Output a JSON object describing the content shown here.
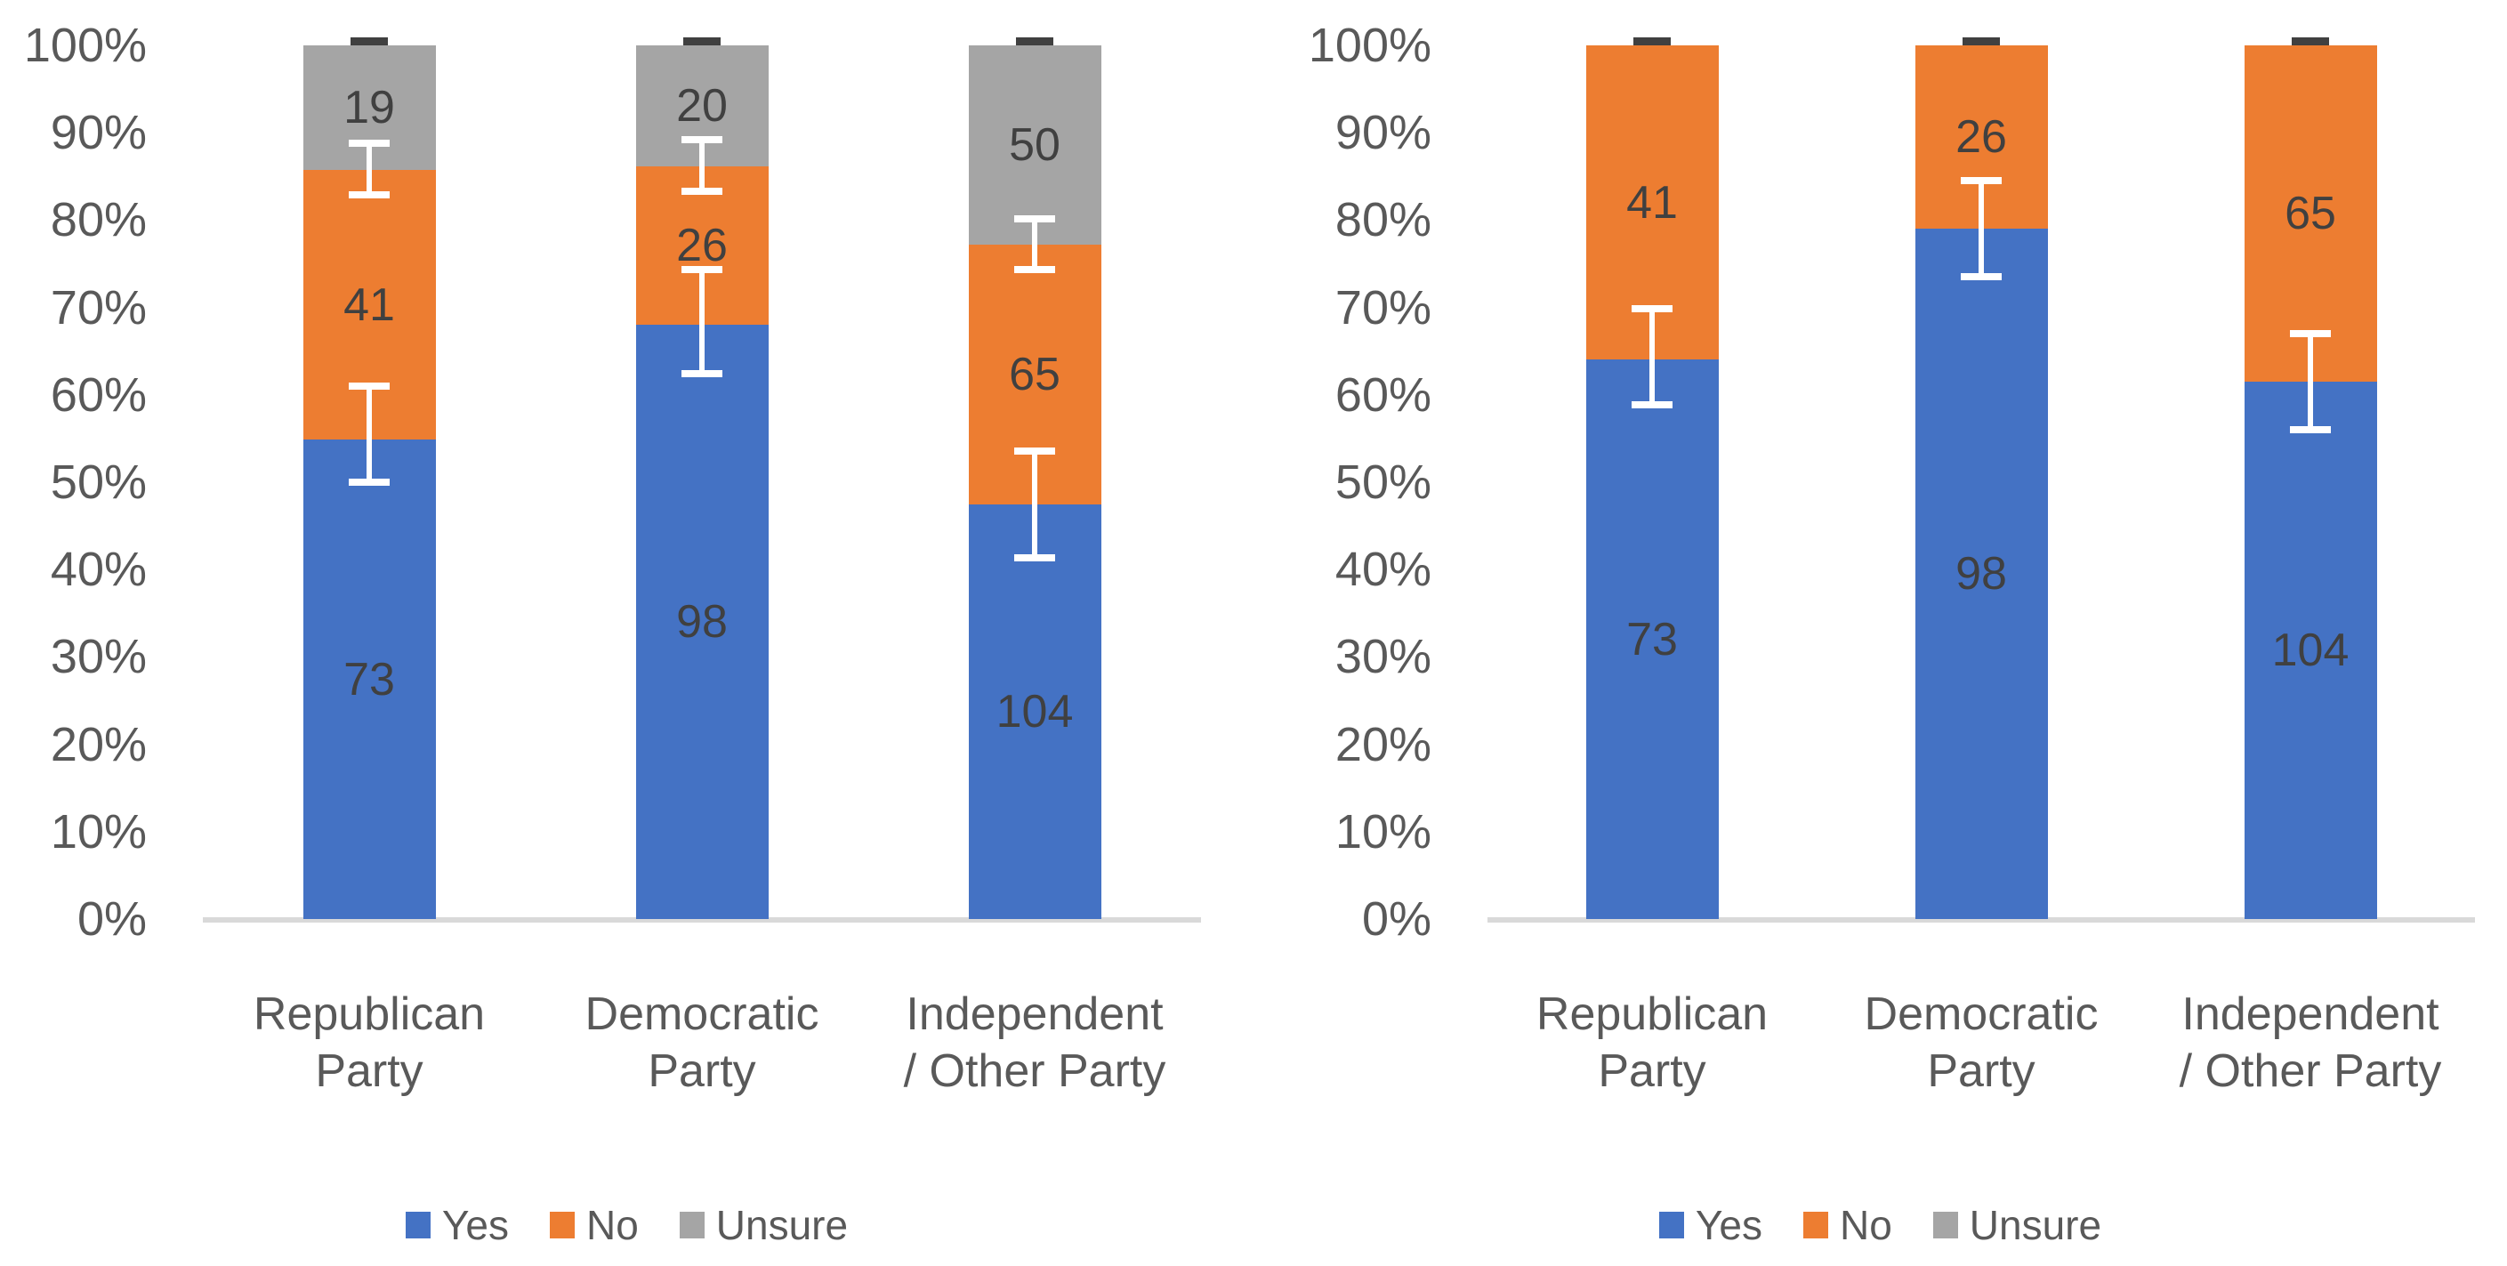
{
  "page": {
    "background": "#ffffff"
  },
  "colors": {
    "yes": "#4472C4",
    "no": "#ED7D31",
    "unsure": "#A5A5A5",
    "axis_line": "#D9D9D9",
    "axis_text": "#595959",
    "data_label_text": "#404040",
    "error_bar": "#FFFFFF",
    "top_cap": "#404040"
  },
  "chart_data": [
    {
      "type": "bar",
      "subtype": "stacked-100-percent",
      "title": "",
      "categories": [
        "Republican Party",
        "Democratic Party",
        "Independent / Other Party"
      ],
      "category_lines": [
        [
          "Republican",
          "Party"
        ],
        [
          "Democratic",
          "Party"
        ],
        [
          "Independent",
          "/ Other Party"
        ]
      ],
      "series": [
        {
          "name": "Yes",
          "color": "#4472C4",
          "values": [
            73,
            98,
            104
          ]
        },
        {
          "name": "No",
          "color": "#ED7D31",
          "values": [
            41,
            26,
            65
          ]
        },
        {
          "name": "Unsure",
          "color": "#A5A5A5",
          "values": [
            19,
            20,
            50
          ]
        }
      ],
      "y_axis": {
        "ticks": [
          "0%",
          "10%",
          "20%",
          "30%",
          "40%",
          "50%",
          "60%",
          "70%",
          "80%",
          "90%",
          "100%"
        ],
        "min": 0,
        "max": 100,
        "gridlines": false
      },
      "legend": {
        "position": "bottom",
        "entries": [
          "Yes",
          "No",
          "Unsure"
        ]
      },
      "error_bars": [
        {
          "category": 0,
          "low_pct": 50.0,
          "high_pct": 61.0,
          "color": "#FFFFFF"
        },
        {
          "category": 0,
          "low_pct": 82.9,
          "high_pct": 88.8,
          "color": "#FFFFFF"
        },
        {
          "category": 1,
          "low_pct": 62.4,
          "high_pct": 74.3,
          "color": "#FFFFFF"
        },
        {
          "category": 1,
          "low_pct": 83.3,
          "high_pct": 89.2,
          "color": "#FFFFFF"
        },
        {
          "category": 2,
          "low_pct": 41.3,
          "high_pct": 53.6,
          "color": "#FFFFFF"
        },
        {
          "category": 2,
          "low_pct": 74.3,
          "high_pct": 80.1,
          "color": "#FFFFFF"
        }
      ],
      "top_caps": {
        "pct": 100,
        "color": "#404040",
        "categories": [
          0,
          1,
          2
        ]
      }
    },
    {
      "type": "bar",
      "subtype": "stacked-100-percent",
      "title": "",
      "categories": [
        "Republican Party",
        "Democratic Party",
        "Independent / Other Party"
      ],
      "category_lines": [
        [
          "Republican",
          "Party"
        ],
        [
          "Democratic",
          "Party"
        ],
        [
          "Independent",
          "/ Other Party"
        ]
      ],
      "series": [
        {
          "name": "Yes",
          "color": "#4472C4",
          "values": [
            73,
            98,
            104
          ]
        },
        {
          "name": "No",
          "color": "#ED7D31",
          "values": [
            41,
            26,
            65
          ]
        },
        {
          "name": "Unsure",
          "color": "#A5A5A5",
          "values": [
            0,
            0,
            0
          ]
        }
      ],
      "y_axis": {
        "ticks": [
          "0%",
          "10%",
          "20%",
          "30%",
          "40%",
          "50%",
          "60%",
          "70%",
          "80%",
          "90%",
          "100%"
        ],
        "min": 0,
        "max": 100,
        "gridlines": false
      },
      "legend": {
        "position": "bottom",
        "entries": [
          "Yes",
          "No",
          "Unsure"
        ]
      },
      "error_bars": [
        {
          "category": 0,
          "low_pct": 58.9,
          "high_pct": 69.9,
          "color": "#FFFFFF"
        },
        {
          "category": 1,
          "low_pct": 73.5,
          "high_pct": 84.5,
          "color": "#FFFFFF"
        },
        {
          "category": 2,
          "low_pct": 56.0,
          "high_pct": 67.0,
          "color": "#FFFFFF"
        }
      ],
      "top_caps": {
        "pct": 100,
        "color": "#404040",
        "categories": [
          0,
          1,
          2
        ]
      }
    }
  ]
}
